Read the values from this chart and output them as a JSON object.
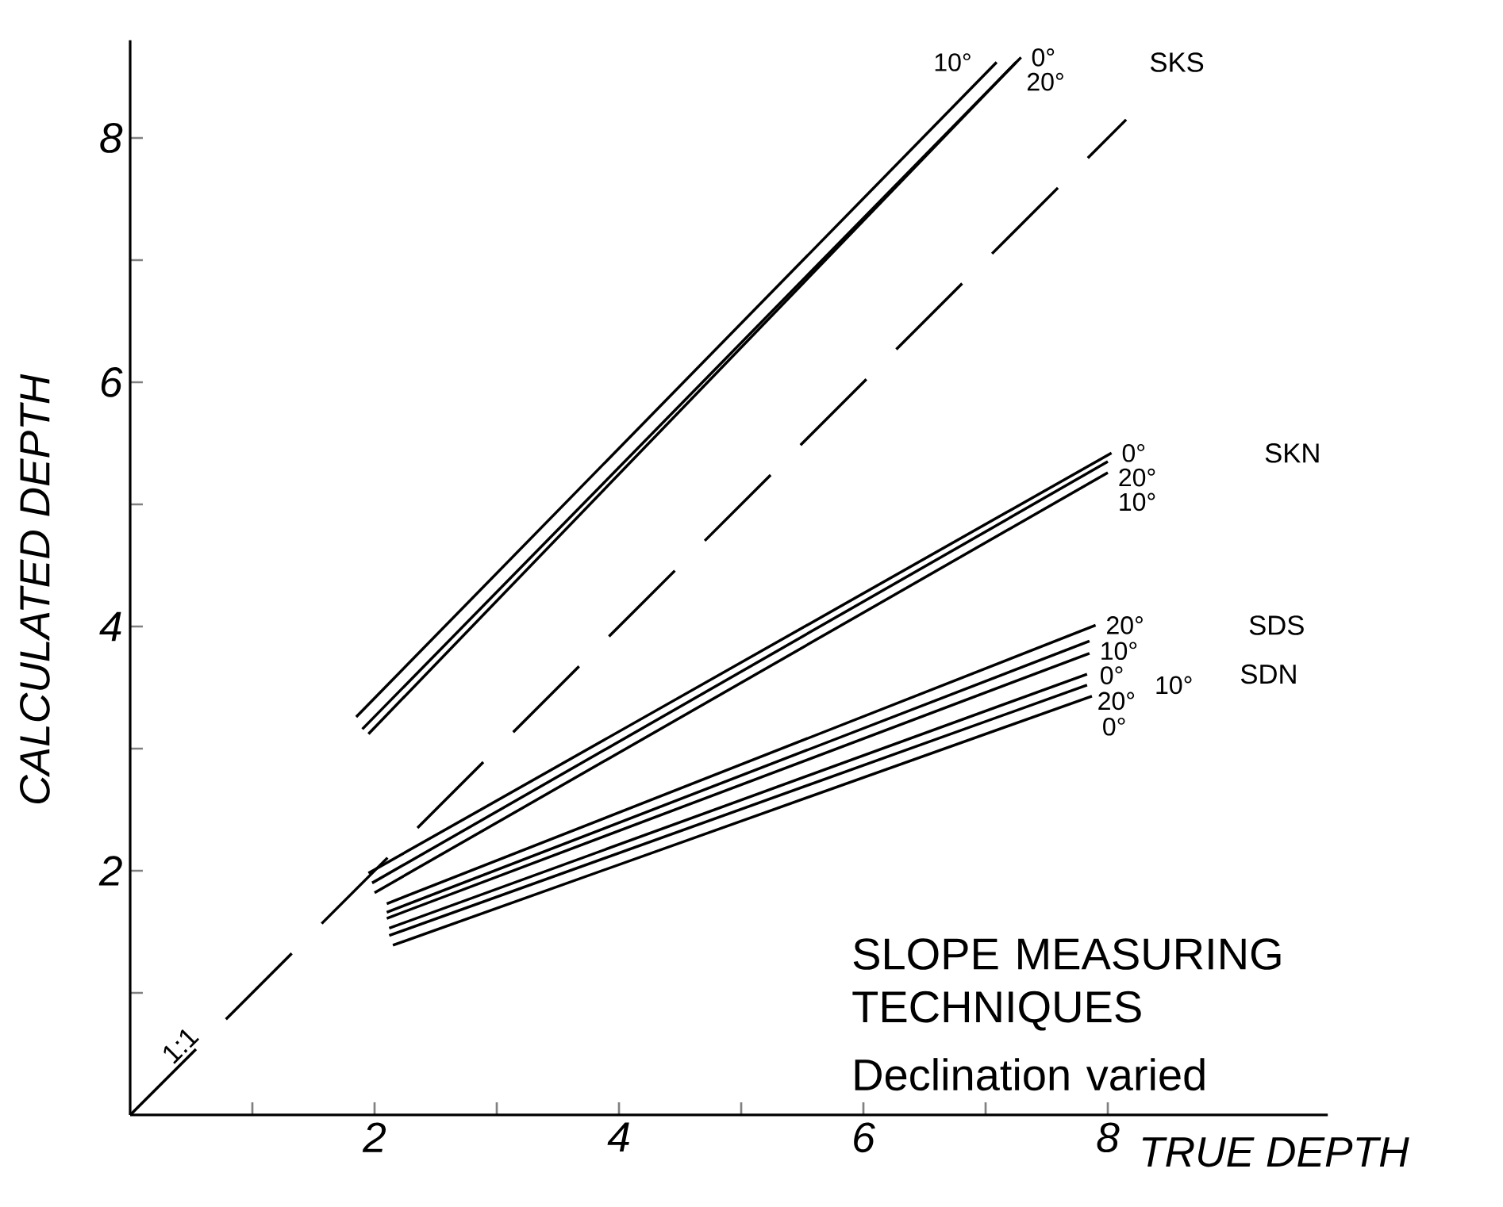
{
  "chart_data": {
    "type": "line",
    "xlabel": "TRUE DEPTH",
    "ylabel": "CALCULATED DEPTH",
    "xlim": [
      0,
      9.8
    ],
    "ylim": [
      0,
      8.8
    ],
    "xticks": [
      {
        "value": 1,
        "label": null
      },
      2,
      {
        "value": 3,
        "label": null
      },
      4,
      {
        "value": 5,
        "label": null
      },
      6,
      {
        "value": 7,
        "label": null
      },
      8
    ],
    "yticks": [
      {
        "value": 1,
        "label": null
      },
      2,
      {
        "value": 3,
        "label": null
      },
      4,
      {
        "value": 5,
        "label": null
      },
      6,
      {
        "value": 7,
        "label": null
      },
      8
    ],
    "grid": false,
    "marker": "none",
    "line_style": "solid",
    "series": [
      {
        "color": "#000000",
        "x": [
          0,
          8.15
        ],
        "values": [
          0,
          8.15
        ],
        "line_style": "dashed"
      },
      {
        "color": "#000000",
        "x": [
          1.85,
          7.09
        ],
        "values": [
          3.26,
          8.62
        ]
      },
      {
        "color": "#000000",
        "x": [
          1.9,
          7.29
        ],
        "values": [
          3.16,
          8.66
        ]
      },
      {
        "color": "#000000",
        "x": [
          1.95,
          7.25
        ],
        "values": [
          3.12,
          8.62
        ]
      },
      {
        "color": "#000000",
        "x": [
          1.95,
          8.03
        ],
        "values": [
          1.98,
          5.42
        ]
      },
      {
        "color": "#000000",
        "x": [
          1.98,
          8.0
        ],
        "values": [
          1.9,
          5.35
        ]
      },
      {
        "color": "#000000",
        "x": [
          2.0,
          8.0
        ],
        "values": [
          1.82,
          5.26
        ]
      },
      {
        "color": "#000000",
        "x": [
          2.1,
          7.9
        ],
        "values": [
          1.73,
          4.01
        ]
      },
      {
        "color": "#000000",
        "x": [
          2.1,
          7.85
        ],
        "values": [
          1.66,
          3.88
        ]
      },
      {
        "color": "#000000",
        "x": [
          2.1,
          7.85
        ],
        "values": [
          1.61,
          3.78
        ]
      },
      {
        "color": "#000000",
        "x": [
          2.12,
          7.83
        ],
        "values": [
          1.53,
          3.61
        ]
      },
      {
        "color": "#000000",
        "x": [
          2.12,
          7.83
        ],
        "values": [
          1.47,
          3.52
        ]
      },
      {
        "color": "#000000",
        "x": [
          2.15,
          7.87
        ],
        "values": [
          1.39,
          3.43
        ]
      }
    ],
    "annotations": [
      "1:1",
      "10°",
      "0°",
      "20°",
      "0°",
      "20°",
      "10°",
      "20°",
      "10°",
      "0°",
      "20°",
      "10°",
      "0°",
      "SKS",
      "SKN",
      "SDS",
      "SDN",
      "SLOPE MEASURING TECHNIQUES",
      "Declination varied"
    ]
  }
}
